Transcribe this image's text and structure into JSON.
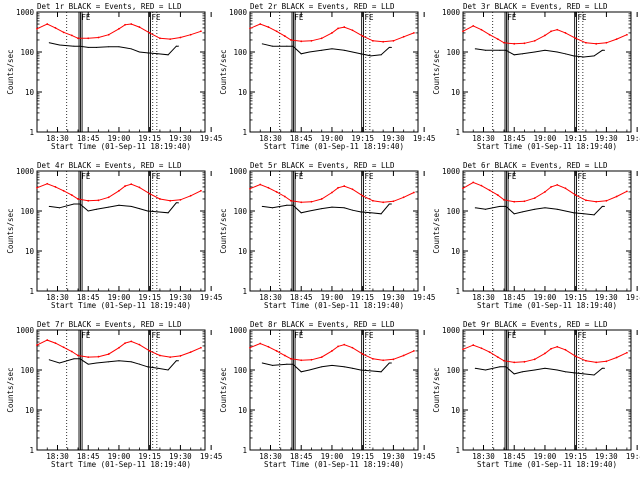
{
  "colors": {
    "events": "#000000",
    "lld": "#ff0000",
    "axes": "#000000",
    "background": "#ffffff"
  },
  "shared": {
    "ylabel": "Counts/sec",
    "xlabel": "Start Time (01-Sep-11 18:19:40)",
    "x_ticks": [
      "18:30",
      "18:45",
      "19:00",
      "19:15",
      "19:30",
      "19:45"
    ],
    "y_ticks": [
      "1",
      "10",
      "100",
      "1000"
    ],
    "marker": "FE"
  },
  "chart_data": [
    {
      "type": "line",
      "title": "Det 1r BLACK = Events, RED = LLD",
      "yscale": "log",
      "ylim": [
        1,
        1000
      ],
      "series": [
        {
          "name": "Events",
          "color": "#000000",
          "x": [
            6,
            11,
            18,
            21,
            25,
            29,
            35,
            40,
            46,
            50,
            54,
            59,
            64,
            68,
            69
          ],
          "y": [
            170,
            150,
            140,
            140,
            130,
            130,
            135,
            135,
            120,
            100,
            95,
            90,
            85,
            140,
            140
          ]
        },
        {
          "name": "LLD",
          "color": "#ff0000",
          "x": [
            0,
            5,
            9,
            13,
            17,
            20,
            25,
            30,
            35,
            40,
            43,
            46,
            50,
            55,
            60,
            65,
            70,
            75,
            80
          ],
          "y": [
            380,
            500,
            400,
            310,
            260,
            220,
            220,
            230,
            270,
            380,
            480,
            500,
            420,
            300,
            220,
            210,
            230,
            270,
            330
          ]
        }
      ]
    },
    {
      "type": "line",
      "title": "Det 2r BLACK = Events, RED = LLD",
      "yscale": "log",
      "ylim": [
        1,
        1000
      ],
      "series": [
        {
          "name": "Events",
          "color": "#000000",
          "x": [
            6,
            11,
            18,
            21,
            25,
            29,
            35,
            40,
            46,
            50,
            54,
            59,
            64,
            68,
            69
          ],
          "y": [
            160,
            140,
            140,
            140,
            90,
            100,
            110,
            120,
            110,
            100,
            90,
            80,
            85,
            130,
            130
          ]
        },
        {
          "name": "LLD",
          "color": "#ff0000",
          "x": [
            0,
            5,
            9,
            13,
            17,
            20,
            25,
            30,
            35,
            40,
            43,
            46,
            50,
            55,
            60,
            65,
            70,
            75,
            80
          ],
          "y": [
            390,
            500,
            420,
            330,
            250,
            200,
            185,
            190,
            220,
            300,
            390,
            420,
            350,
            250,
            190,
            180,
            190,
            240,
            300
          ]
        }
      ]
    },
    {
      "type": "line",
      "title": "Det 3r BLACK = Events, RED = LLD",
      "yscale": "log",
      "ylim": [
        1,
        1000
      ],
      "series": [
        {
          "name": "Events",
          "color": "#000000",
          "x": [
            6,
            11,
            18,
            21,
            25,
            29,
            35,
            40,
            46,
            50,
            54,
            59,
            64,
            68,
            69
          ],
          "y": [
            120,
            110,
            110,
            110,
            85,
            90,
            100,
            110,
            100,
            90,
            80,
            75,
            80,
            110,
            110
          ]
        },
        {
          "name": "LLD",
          "color": "#ff0000",
          "x": [
            0,
            5,
            9,
            13,
            17,
            20,
            25,
            30,
            35,
            40,
            43,
            46,
            50,
            55,
            60,
            65,
            70,
            75,
            80
          ],
          "y": [
            330,
            450,
            360,
            270,
            210,
            170,
            160,
            165,
            190,
            260,
            330,
            360,
            300,
            220,
            170,
            160,
            170,
            210,
            270
          ]
        }
      ]
    },
    {
      "type": "line",
      "title": "Det 4r BLACK = Events, RED = LLD",
      "yscale": "log",
      "ylim": [
        1,
        1000
      ],
      "series": [
        {
          "name": "Events",
          "color": "#000000",
          "x": [
            6,
            11,
            18,
            21,
            25,
            29,
            35,
            40,
            46,
            50,
            54,
            59,
            64,
            68,
            69
          ],
          "y": [
            130,
            120,
            150,
            150,
            100,
            110,
            125,
            140,
            130,
            115,
            100,
            95,
            90,
            160,
            160
          ]
        },
        {
          "name": "LLD",
          "color": "#ff0000",
          "x": [
            0,
            5,
            9,
            13,
            17,
            20,
            25,
            30,
            35,
            40,
            43,
            46,
            50,
            55,
            60,
            65,
            70,
            75,
            80
          ],
          "y": [
            380,
            480,
            400,
            320,
            250,
            200,
            180,
            185,
            220,
            320,
            420,
            470,
            390,
            270,
            200,
            180,
            190,
            240,
            320
          ]
        }
      ]
    },
    {
      "type": "line",
      "title": "Det 5r BLACK = Events, RED = LLD",
      "yscale": "log",
      "ylim": [
        1,
        1000
      ],
      "series": [
        {
          "name": "Events",
          "color": "#000000",
          "x": [
            6,
            11,
            18,
            21,
            25,
            29,
            35,
            40,
            46,
            50,
            54,
            59,
            64,
            68,
            69
          ],
          "y": [
            130,
            120,
            140,
            140,
            90,
            100,
            115,
            125,
            120,
            105,
            95,
            90,
            85,
            150,
            150
          ]
        },
        {
          "name": "LLD",
          "color": "#ff0000",
          "x": [
            0,
            5,
            9,
            13,
            17,
            20,
            25,
            30,
            35,
            40,
            43,
            46,
            50,
            55,
            60,
            65,
            70,
            75,
            80
          ],
          "y": [
            360,
            460,
            380,
            300,
            230,
            180,
            165,
            170,
            200,
            290,
            380,
            420,
            350,
            240,
            180,
            165,
            175,
            220,
            290
          ]
        }
      ]
    },
    {
      "type": "line",
      "title": "Det 6r BLACK = Events, RED = LLD",
      "yscale": "log",
      "ylim": [
        1,
        1000
      ],
      "series": [
        {
          "name": "Events",
          "color": "#000000",
          "x": [
            6,
            11,
            18,
            21,
            25,
            29,
            35,
            40,
            46,
            50,
            54,
            59,
            64,
            68,
            69
          ],
          "y": [
            120,
            110,
            130,
            130,
            85,
            95,
            110,
            120,
            110,
            100,
            90,
            85,
            80,
            130,
            130
          ]
        },
        {
          "name": "LLD",
          "color": "#ff0000",
          "x": [
            0,
            5,
            9,
            13,
            17,
            20,
            25,
            30,
            35,
            40,
            43,
            46,
            50,
            55,
            60,
            65,
            70,
            75,
            80
          ],
          "y": [
            370,
            520,
            430,
            330,
            250,
            190,
            170,
            175,
            210,
            300,
            400,
            450,
            370,
            250,
            185,
            170,
            180,
            230,
            310
          ]
        }
      ]
    },
    {
      "type": "line",
      "title": "Det 7r BLACK = Events, RED = LLD",
      "yscale": "log",
      "ylim": [
        1,
        1000
      ],
      "series": [
        {
          "name": "Events",
          "color": "#000000",
          "x": [
            6,
            11,
            18,
            21,
            25,
            29,
            35,
            40,
            46,
            50,
            54,
            59,
            64,
            68,
            69
          ],
          "y": [
            180,
            150,
            190,
            190,
            140,
            150,
            160,
            170,
            160,
            140,
            120,
            110,
            100,
            170,
            170
          ]
        },
        {
          "name": "LLD",
          "color": "#ff0000",
          "x": [
            0,
            5,
            9,
            13,
            17,
            20,
            25,
            30,
            35,
            40,
            43,
            46,
            50,
            55,
            60,
            65,
            70,
            75,
            80
          ],
          "y": [
            420,
            560,
            470,
            370,
            290,
            230,
            210,
            215,
            250,
            360,
            470,
            520,
            430,
            300,
            230,
            210,
            225,
            280,
            360
          ]
        }
      ]
    },
    {
      "type": "line",
      "title": "Det 8r BLACK = Events, RED = LLD",
      "yscale": "log",
      "ylim": [
        1,
        1000
      ],
      "series": [
        {
          "name": "Events",
          "color": "#000000",
          "x": [
            6,
            11,
            18,
            21,
            25,
            29,
            35,
            40,
            46,
            50,
            54,
            59,
            64,
            68,
            69
          ],
          "y": [
            150,
            130,
            140,
            140,
            90,
            100,
            120,
            130,
            120,
            110,
            100,
            95,
            90,
            150,
            150
          ]
        },
        {
          "name": "LLD",
          "color": "#ff0000",
          "x": [
            0,
            5,
            9,
            13,
            17,
            20,
            25,
            30,
            35,
            40,
            43,
            46,
            50,
            55,
            60,
            65,
            70,
            75,
            80
          ],
          "y": [
            360,
            460,
            380,
            300,
            230,
            190,
            175,
            180,
            210,
            300,
            390,
            430,
            360,
            250,
            190,
            175,
            185,
            230,
            300
          ]
        }
      ]
    },
    {
      "type": "line",
      "title": "Det 9r BLACK = Events, RED = LLD",
      "yscale": "log",
      "ylim": [
        1,
        1000
      ],
      "series": [
        {
          "name": "Events",
          "color": "#000000",
          "x": [
            6,
            11,
            18,
            21,
            25,
            29,
            35,
            40,
            46,
            50,
            54,
            59,
            64,
            68,
            69
          ],
          "y": [
            110,
            100,
            120,
            120,
            80,
            90,
            100,
            110,
            100,
            90,
            85,
            80,
            75,
            110,
            110
          ]
        },
        {
          "name": "LLD",
          "color": "#ff0000",
          "x": [
            0,
            5,
            9,
            13,
            17,
            20,
            25,
            30,
            35,
            40,
            43,
            46,
            50,
            55,
            60,
            65,
            70,
            75,
            80
          ],
          "y": [
            330,
            420,
            350,
            280,
            210,
            170,
            155,
            160,
            185,
            260,
            340,
            380,
            320,
            220,
            170,
            155,
            165,
            205,
            270
          ]
        }
      ]
    }
  ]
}
